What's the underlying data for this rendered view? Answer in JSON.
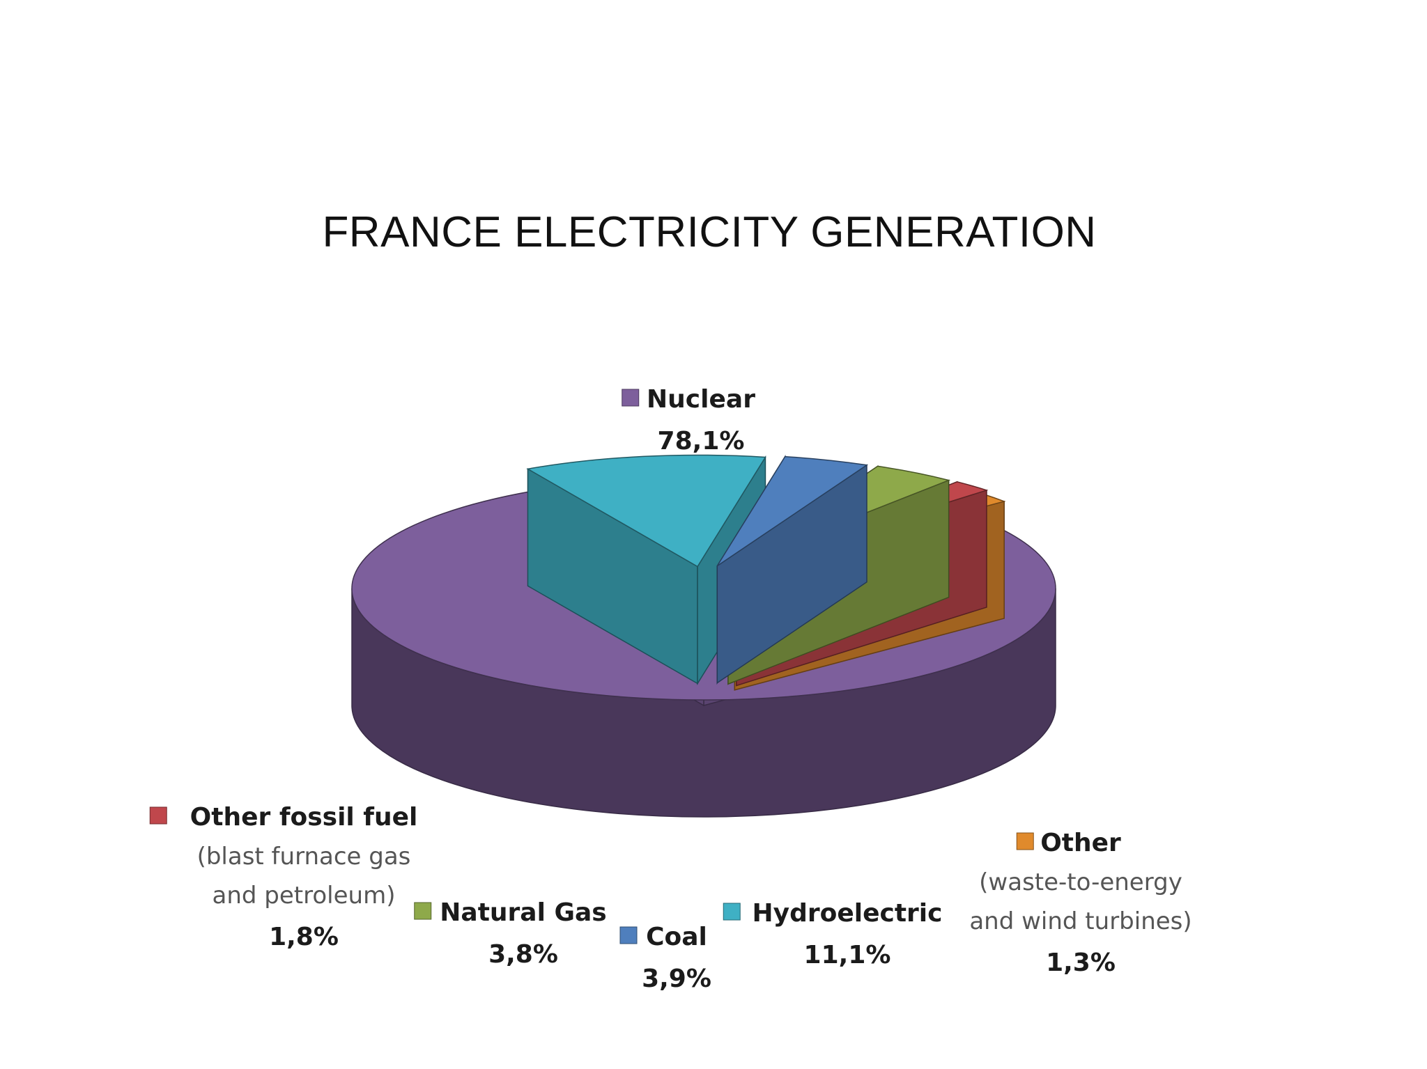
{
  "slide": {
    "title": "FRANCE ELECTRICITY GENERATION"
  },
  "chart_data": {
    "type": "pie",
    "title": "",
    "style": "3d exploded",
    "slices": [
      {
        "name": "Nuclear",
        "value": 78.1,
        "value_label": "78,1%",
        "color": "#7d5f9c"
      },
      {
        "name": "Hydroelectric",
        "value": 11.1,
        "value_label": "11,1%",
        "color": "#3fb0c4"
      },
      {
        "name": "Coal",
        "value": 3.9,
        "value_label": "3,9%",
        "color": "#4f7fbd"
      },
      {
        "name": "Natural Gas",
        "value": 3.8,
        "value_label": "3,8%",
        "color": "#8ea94a"
      },
      {
        "name": "Other fossil fuel",
        "value": 1.8,
        "value_label": "1,8%",
        "color": "#c0474c",
        "note_lines": [
          "(blast furnace gas",
          "and petroleum)"
        ]
      },
      {
        "name": "Other",
        "value": 1.3,
        "value_label": "1,3%",
        "color": "#e08a2c",
        "note_lines": [
          "(waste-to-energy",
          "and wind turbines)"
        ]
      }
    ]
  }
}
